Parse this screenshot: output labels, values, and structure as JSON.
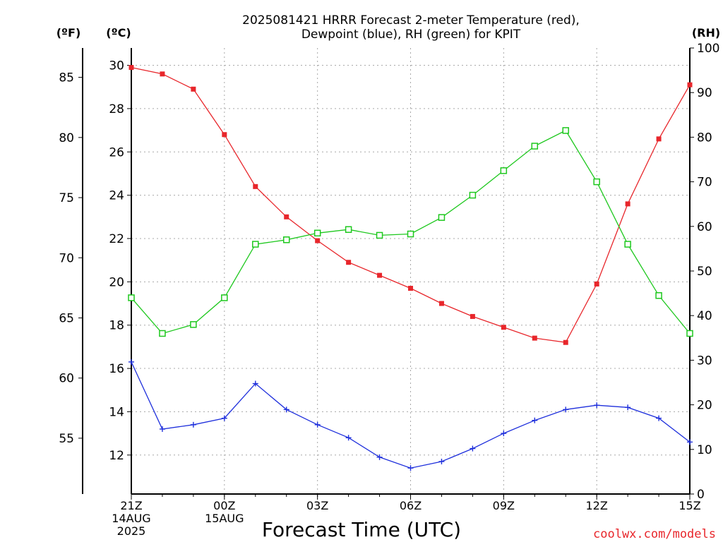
{
  "chart_data": {
    "type": "line",
    "title_line1": "2025081421 HRRR Forecast 2-meter Temperature (red),",
    "title_line2": "Dewpoint (blue), RH (green) for KPIT",
    "xlabel": "Forecast Time (UTC)",
    "unit_f": "(ºF)",
    "unit_c": "(ºC)",
    "unit_rh": "(RH)",
    "watermark": "coolwx.com/models",
    "x_ticks": [
      {
        "hour": 0,
        "lines": [
          "21Z",
          "14AUG",
          "2025"
        ]
      },
      {
        "hour": 3,
        "lines": [
          "00Z",
          "15AUG"
        ]
      },
      {
        "hour": 6,
        "lines": [
          "03Z"
        ]
      },
      {
        "hour": 9,
        "lines": [
          "06Z"
        ]
      },
      {
        "hour": 12,
        "lines": [
          "09Z"
        ]
      },
      {
        "hour": 15,
        "lines": [
          "12Z"
        ]
      },
      {
        "hour": 18,
        "lines": [
          "15Z"
        ]
      }
    ],
    "xlim": [
      0,
      18
    ],
    "ylim_c": [
      10.2,
      30.8
    ],
    "yticks_c": [
      12,
      14,
      16,
      18,
      20,
      22,
      24,
      26,
      28,
      30
    ],
    "yticks_f": [
      55,
      60,
      65,
      70,
      75,
      80,
      85
    ],
    "ylim_rh": [
      0,
      100
    ],
    "yticks_rh": [
      0,
      10,
      20,
      30,
      40,
      50,
      60,
      70,
      80,
      90,
      100
    ],
    "grid": true,
    "series": [
      {
        "name": "2-meter Temperature",
        "axis": "c",
        "color": "#e8262b",
        "marker": "filled-square",
        "x": [
          0,
          1,
          2,
          3,
          4,
          5,
          6,
          7,
          8,
          9,
          10,
          11,
          12,
          13,
          14,
          15,
          16,
          17,
          18
        ],
        "y": [
          29.9,
          29.6,
          28.9,
          26.8,
          24.4,
          23.0,
          21.9,
          20.9,
          20.3,
          19.7,
          19.0,
          18.4,
          17.9,
          17.4,
          17.2,
          19.9,
          23.6,
          26.6,
          29.1
        ]
      },
      {
        "name": "Dewpoint",
        "axis": "c",
        "color": "#1e2fdc",
        "marker": "plus",
        "x": [
          0,
          1,
          2,
          3,
          4,
          5,
          6,
          7,
          8,
          9,
          10,
          11,
          12,
          13,
          14,
          15,
          16,
          17,
          18
        ],
        "y": [
          16.3,
          13.2,
          13.4,
          13.7,
          15.3,
          14.1,
          13.4,
          12.8,
          11.9,
          11.4,
          11.7,
          12.3,
          13.0,
          13.6,
          14.1,
          14.3,
          14.2,
          13.7,
          12.6
        ]
      },
      {
        "name": "RH",
        "axis": "rh",
        "color": "#1ec81e",
        "marker": "open-square",
        "x": [
          0,
          1,
          2,
          3,
          4,
          5,
          6,
          7,
          8,
          9,
          10,
          11,
          12,
          13,
          14,
          15,
          16,
          17,
          18
        ],
        "y": [
          44,
          36,
          38,
          44,
          56,
          57,
          58.5,
          59.3,
          58,
          58.3,
          62,
          67,
          72.5,
          78,
          81.5,
          70,
          56,
          44.5,
          36
        ]
      }
    ]
  }
}
